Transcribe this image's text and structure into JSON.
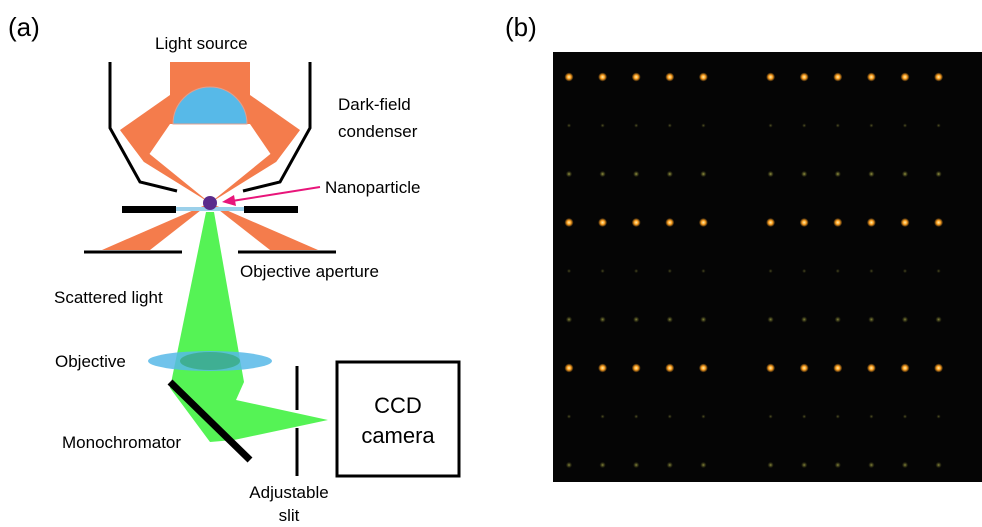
{
  "panel_a": {
    "tag": "(a)",
    "labels": {
      "light_source": "Light source",
      "condenser_line1": "Dark-field",
      "condenser_line2": "condenser",
      "nanoparticle": "Nanoparticle",
      "objective_aperture": "Objective aperture",
      "scattered_light": "Scattered light",
      "objective": "Objective",
      "monochromator": "Monochromator",
      "ccd_line1": "CCD",
      "ccd_line2": "camera",
      "slit_line1": "Adjustable",
      "slit_line2": "slit"
    },
    "colors": {
      "illumination": "#f47c4c",
      "lens": "#57b9e8",
      "scattered": "#4cf24c",
      "nanoparticle": "#5a2b8c",
      "arrow": "#e8157a",
      "outline": "#000000"
    }
  },
  "panel_b": {
    "tag": "(b)",
    "background": "#050505",
    "grid": {
      "rows": 9,
      "cols": 12,
      "missing_col_index": 5,
      "row_brightness": [
        1.0,
        0.25,
        0.65,
        1.0,
        0.2,
        0.55,
        1.0,
        0.25,
        0.55
      ],
      "colors": {
        "bright": "#ffa020",
        "dim": "#7a7a2a"
      }
    }
  }
}
